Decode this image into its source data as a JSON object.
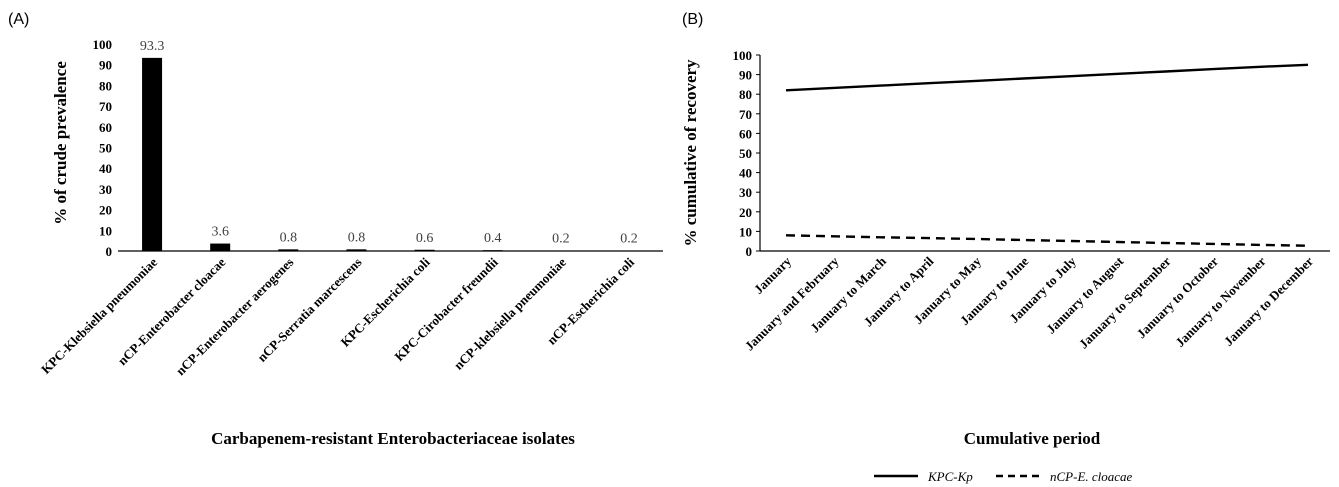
{
  "chart_data": [
    {
      "panel_label": "(A)",
      "type": "bar",
      "xlabel": "Carbapenem-resistant Enterobacteriaceae isolates",
      "ylabel": "% of crude prevalence",
      "ylim": [
        0,
        100
      ],
      "yticks": [
        "0",
        "10",
        "20",
        "30",
        "40",
        "50",
        "60",
        "70",
        "80",
        "90",
        "100"
      ],
      "categories": [
        "KPC-Klebsiella pneumoniae",
        "nCP-Enterobacter cloacae",
        "nCP-Enterobacter aerogenes",
        "nCP-Serratia marcescens",
        "KPC-Escherichia coli",
        "KPC-Cirobacter freundii",
        "nCP-klebsiella pneumoniae",
        "nCP-Escherichia coli"
      ],
      "values": [
        93.3,
        3.6,
        0.8,
        0.8,
        0.6,
        0.4,
        0.2,
        0.2
      ],
      "data_labels": [
        "93.3",
        "3.6",
        "0.8",
        "0.8",
        "0.6",
        "0.4",
        "0.2",
        "0.2"
      ],
      "bar_color": "#000000",
      "grid": false
    },
    {
      "panel_label": "(B)",
      "type": "line",
      "xlabel": "Cumulative period",
      "ylabel": "% cumulative of recovery",
      "ylim": [
        0,
        100
      ],
      "yticks": [
        "0",
        "10",
        "20",
        "30",
        "40",
        "50",
        "60",
        "70",
        "80",
        "90",
        "100"
      ],
      "categories": [
        "January",
        "January and February",
        "January to March",
        "January to April",
        "January to May",
        "January to June",
        "January to July",
        "January to August",
        "January to September",
        "January to October",
        "January to November",
        "January to December"
      ],
      "series": [
        {
          "name": "KPC-Kp",
          "style": "solid",
          "color": "#000000",
          "values": [
            82,
            83.2,
            84.4,
            85.6,
            86.8,
            88,
            89.2,
            90.4,
            91.6,
            92.8,
            94,
            95
          ]
        },
        {
          "name": "nCP-E. cloacae",
          "style": "dashed",
          "color": "#000000",
          "values": [
            8,
            7.5,
            7,
            6.6,
            6.1,
            5.6,
            5.1,
            4.6,
            4.1,
            3.6,
            3.1,
            2.7
          ]
        }
      ],
      "legend_position": "bottom",
      "grid": false
    }
  ]
}
